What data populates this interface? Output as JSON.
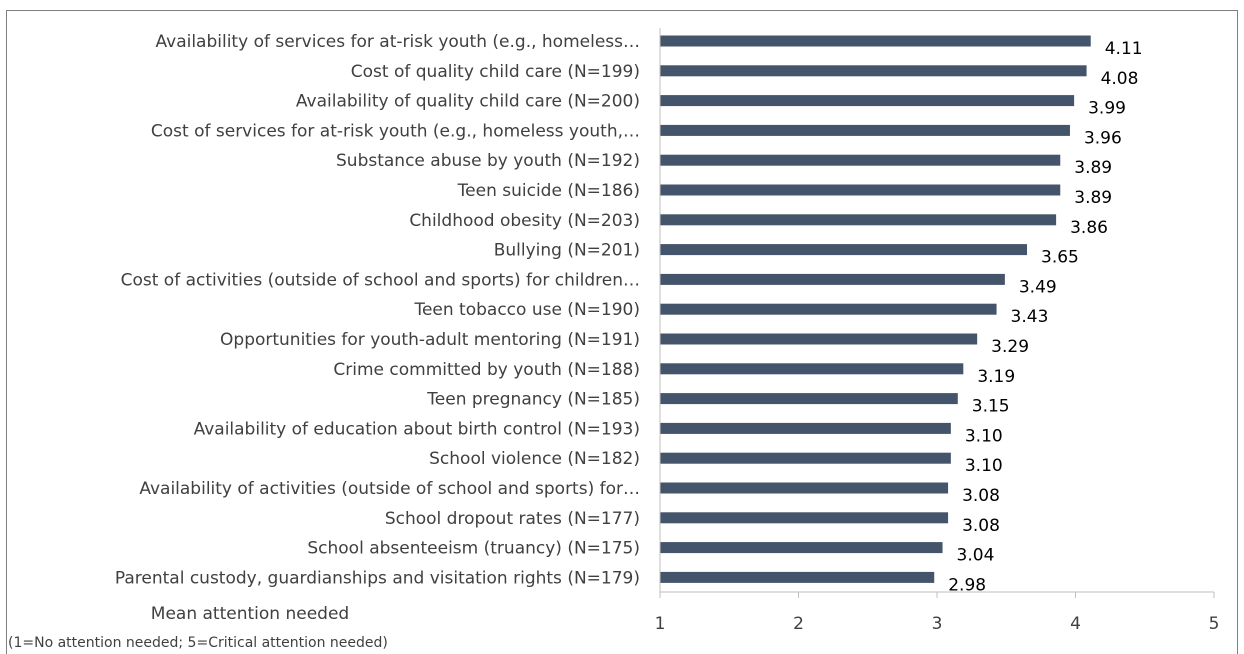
{
  "chart_data": {
    "type": "bar",
    "orientation": "horizontal",
    "title": "",
    "xlabel": "Mean attention needed",
    "xlabel_note": "(1=No attention needed; 5=Critical attention needed)",
    "xlim": [
      1,
      5
    ],
    "xticks": [
      "1",
      "2",
      "3",
      "4",
      "5"
    ],
    "grid": false,
    "bar_color": "#44546a",
    "categories": [
      "Availability of services for at-risk youth (e.g., homeless…",
      "Cost of quality child care (N=199)",
      "Availability of quality child care (N=200)",
      "Cost of services for at-risk youth (e.g., homeless youth,…",
      "Substance abuse by youth (N=192)",
      "Teen suicide (N=186)",
      "Childhood obesity (N=203)",
      "Bullying (N=201)",
      "Cost of activities (outside of school and sports) for children…",
      "Teen tobacco use (N=190)",
      "Opportunities for youth-adult mentoring (N=191)",
      "Crime committed by youth (N=188)",
      "Teen pregnancy (N=185)",
      "Availability of education about birth control (N=193)",
      "School violence (N=182)",
      "Availability of activities (outside of school and sports) for…",
      "School dropout rates (N=177)",
      "School absenteeism (truancy) (N=175)",
      "Parental custody, guardianships and visitation rights (N=179)"
    ],
    "values": [
      4.11,
      4.08,
      3.99,
      3.96,
      3.89,
      3.89,
      3.86,
      3.65,
      3.49,
      3.43,
      3.29,
      3.19,
      3.15,
      3.1,
      3.1,
      3.08,
      3.08,
      3.04,
      2.98
    ],
    "value_labels": [
      "4.11",
      "4.08",
      "3.99",
      "3.96",
      "3.89",
      "3.89",
      "3.86",
      "3.65",
      "3.49",
      "3.43",
      "3.29",
      "3.19",
      "3.15",
      "3.10",
      "3.10",
      "3.08",
      "3.08",
      "3.04",
      "2.98"
    ]
  }
}
